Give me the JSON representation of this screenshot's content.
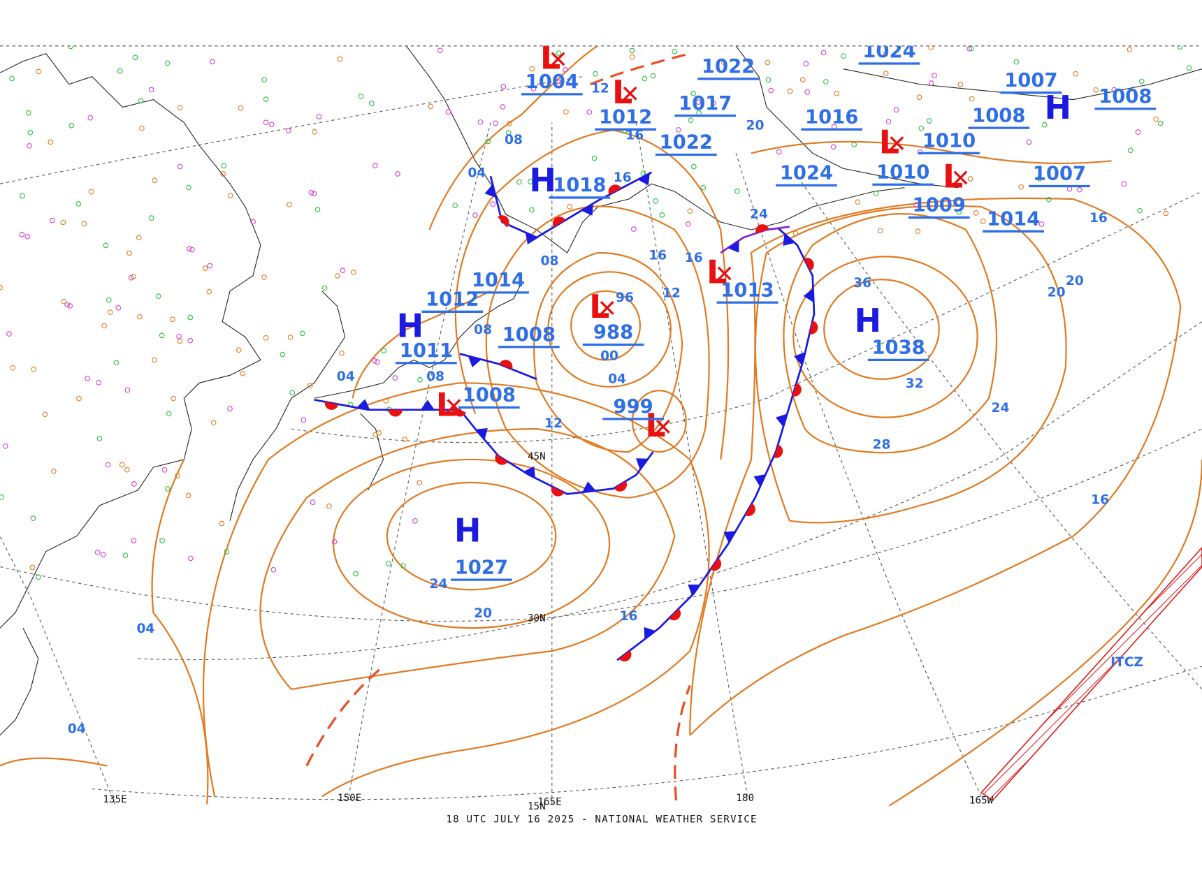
{
  "footer": "18 UTC JULY 16 2025 - NATIONAL WEATHER SERVICE",
  "annotation": "ITCZ",
  "grid_labels": [
    "135E",
    "150E",
    "165E",
    "180",
    "165W",
    "45N",
    "30N",
    "15N"
  ],
  "pressure_centers": [
    {
      "symbol": "H",
      "pressure": "1027"
    },
    {
      "symbol": "H",
      "pressure": "1038"
    },
    {
      "symbol": "L",
      "pressure": "988"
    },
    {
      "symbol": "L",
      "pressure": "999"
    },
    {
      "symbol": "L",
      "pressure": "1008"
    },
    {
      "symbol": "H",
      "pressure": "1011"
    },
    {
      "pressure": "1008"
    },
    {
      "symbol": "L",
      "pressure": "1013"
    },
    {
      "symbol": "L",
      "pressure": "1004"
    },
    {
      "symbol": "L",
      "pressure": "1012"
    },
    {
      "symbol": "H",
      "pressure": "1018"
    },
    {
      "pressure": "1014"
    },
    {
      "pressure": "1012"
    },
    {
      "pressure": "1022"
    },
    {
      "pressure": "1017"
    },
    {
      "pressure": "1022"
    },
    {
      "pressure": "1024"
    },
    {
      "pressure": "1016"
    },
    {
      "symbol": "L",
      "pressure": "1010"
    },
    {
      "symbol": "L",
      "pressure": "1010"
    },
    {
      "pressure": "1009"
    },
    {
      "pressure": "1014"
    },
    {
      "pressure": "1007"
    },
    {
      "pressure": "1007"
    },
    {
      "pressure": "1008"
    },
    {
      "symbol": "H",
      "pressure": "1008"
    },
    {
      "pressure": "1024"
    }
  ],
  "isobar_labels": [
    "08",
    "04",
    "12",
    "16",
    "16",
    "08",
    "96",
    "00",
    "04",
    "12",
    "08",
    "08",
    "04",
    "24",
    "20",
    "16",
    "04",
    "04",
    "36",
    "32",
    "28",
    "24",
    "20",
    "20",
    "16",
    "16",
    "12",
    "16",
    "16",
    "20",
    "24"
  ]
}
